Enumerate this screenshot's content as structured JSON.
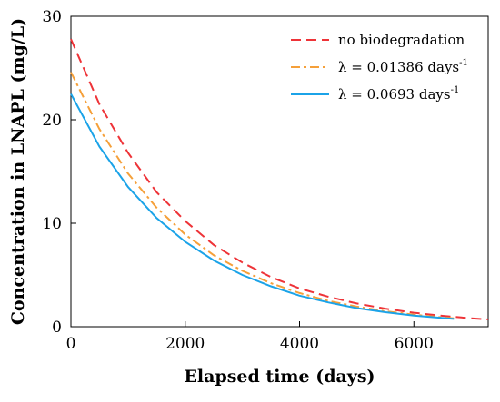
{
  "chart_data": {
    "type": "line",
    "title": "",
    "xlabel": "Elapsed time (days)",
    "ylabel": "Concentration in LNAPL (mg/L)",
    "xlim": [
      0,
      7300
    ],
    "ylim": [
      0,
      30
    ],
    "xticks": [
      0,
      2000,
      4000,
      6000
    ],
    "yticks": [
      0,
      10,
      20,
      30
    ],
    "grid": false,
    "legend_position": "top-right",
    "series": [
      {
        "name": "no biodegradation",
        "color": "#ee3338",
        "style": "dashed",
        "x": [
          0,
          500,
          1000,
          1500,
          2000,
          2500,
          3000,
          3500,
          4000,
          4500,
          5000,
          5500,
          6000,
          6500,
          7000,
          7300
        ],
        "y": [
          27.8,
          21.5,
          16.8,
          13.0,
          10.2,
          7.9,
          6.2,
          4.8,
          3.7,
          2.9,
          2.25,
          1.75,
          1.35,
          1.05,
          0.82,
          0.7
        ]
      },
      {
        "name": "λ = 0.01386 days⁻¹",
        "color": "#f5a03a",
        "style": "dashdot",
        "x": [
          0,
          500,
          1000,
          1500,
          2000,
          2500,
          3000,
          3500,
          4000,
          4500,
          5000,
          5500,
          6000,
          6500,
          6700
        ],
        "y": [
          24.6,
          19.1,
          14.8,
          11.5,
          8.9,
          6.9,
          5.4,
          4.2,
          3.25,
          2.5,
          1.95,
          1.5,
          1.17,
          0.9,
          0.82
        ]
      },
      {
        "name": "λ = 0.0693 days⁻¹",
        "color": "#1ba3e8",
        "style": "solid",
        "x": [
          0,
          500,
          1000,
          1500,
          2000,
          2500,
          3000,
          3500,
          4000,
          4500,
          5000,
          5500,
          6000,
          6500,
          6700
        ],
        "y": [
          22.5,
          17.4,
          13.5,
          10.5,
          8.2,
          6.4,
          5.0,
          3.9,
          3.0,
          2.35,
          1.8,
          1.4,
          1.08,
          0.84,
          0.75
        ]
      }
    ]
  },
  "legend": {
    "items": [
      {
        "text": "no biodegradation",
        "sup": ""
      },
      {
        "text": "λ = 0.01386 days",
        "sup": "-1"
      },
      {
        "text": "λ = 0.0693 days",
        "sup": "-1"
      }
    ]
  }
}
